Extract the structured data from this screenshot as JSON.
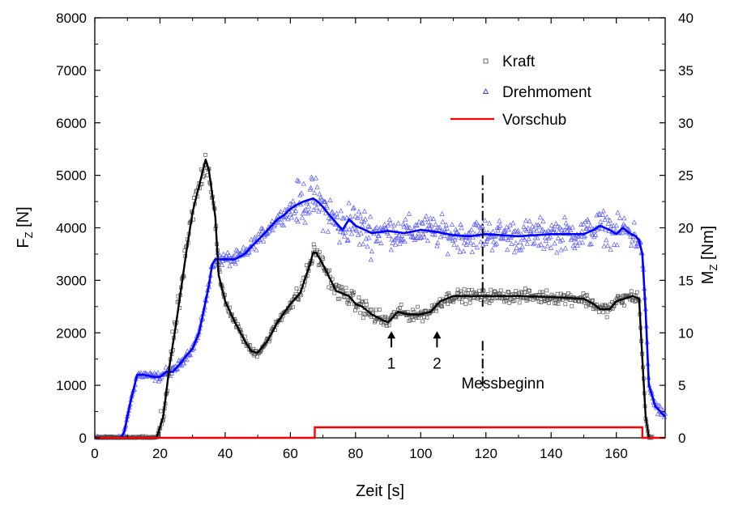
{
  "chart_data": {
    "type": "scatter",
    "title": "",
    "xlabel": "Zeit [s]",
    "ylabel_left": {
      "main": "F",
      "sub": "Z",
      "unit": " [N]"
    },
    "ylabel_right": {
      "main": "M",
      "sub": "Z",
      "unit": " [Nm]"
    },
    "xlim": [
      0,
      175
    ],
    "ylim_left": [
      0,
      8000
    ],
    "ylim_right": [
      0,
      40
    ],
    "x_ticks": [
      0,
      20,
      40,
      60,
      80,
      100,
      120,
      140,
      160
    ],
    "y_left_ticks": [
      0,
      1000,
      2000,
      3000,
      4000,
      5000,
      6000,
      7000,
      8000
    ],
    "y_right_ticks": [
      0,
      5,
      10,
      15,
      20,
      25,
      30,
      35,
      40
    ],
    "grid": false,
    "legend_position": "top-right",
    "legend": [
      {
        "label": "Kraft",
        "marker": "square",
        "color": "#555555"
      },
      {
        "label": "Drehmoment",
        "marker": "triangle",
        "color": "#3b3bff"
      },
      {
        "label": "Vorschub",
        "marker": "line",
        "color": "#ff0000"
      }
    ],
    "series": [
      {
        "name": "Kraft",
        "axis": "left",
        "kind": "smoothed-line",
        "color": "#000000",
        "x": [
          0,
          19,
          21,
          23,
          25,
          28,
          30,
          32,
          34,
          35,
          37,
          38,
          40,
          43,
          46,
          48,
          50,
          53,
          56,
          60,
          63,
          66,
          67,
          68,
          70,
          72,
          74,
          76,
          78,
          80,
          82,
          85,
          88,
          90,
          93,
          96,
          100,
          103,
          106,
          110,
          115,
          120,
          130,
          140,
          150,
          153,
          155,
          158,
          160,
          165,
          167,
          168,
          169,
          170
        ],
        "y": [
          0,
          0,
          400,
          1400,
          2200,
          3500,
          4300,
          4800,
          5300,
          5100,
          4200,
          3100,
          2600,
          2200,
          1850,
          1650,
          1620,
          1850,
          2200,
          2550,
          2750,
          3300,
          3530,
          3520,
          3300,
          3050,
          2800,
          2750,
          2700,
          2550,
          2500,
          2350,
          2250,
          2200,
          2400,
          2350,
          2350,
          2400,
          2600,
          2700,
          2700,
          2700,
          2700,
          2680,
          2650,
          2550,
          2450,
          2450,
          2600,
          2700,
          2650,
          1500,
          400,
          0
        ]
      },
      {
        "name": "Drehmoment",
        "axis": "right",
        "kind": "smoothed-line",
        "color": "#0000ff",
        "x": [
          0,
          8,
          9,
          11,
          13,
          15,
          18,
          20,
          22,
          24,
          26,
          28,
          30,
          32,
          34,
          35,
          36,
          37,
          38,
          40,
          43,
          46,
          48,
          50,
          53,
          56,
          58,
          60,
          62,
          64,
          66,
          67,
          68,
          70,
          72,
          74,
          76,
          78,
          80,
          85,
          90,
          95,
          100,
          105,
          110,
          115,
          120,
          130,
          140,
          150,
          153,
          155,
          158,
          160,
          162,
          164,
          166,
          167,
          168,
          169,
          170,
          172,
          175
        ],
        "y": [
          0,
          0,
          0.5,
          3.5,
          6,
          6,
          5.8,
          5.8,
          6.3,
          6.3,
          7,
          7.8,
          8.5,
          10,
          13,
          14.5,
          16.5,
          17,
          17,
          17,
          17,
          17.5,
          18.2,
          18.8,
          19.8,
          20.8,
          21.2,
          21.8,
          22.2,
          22.5,
          22.7,
          22.8,
          22.6,
          22.0,
          21.2,
          20.5,
          19.8,
          20.8,
          20.2,
          19.5,
          19.7,
          19.5,
          19.8,
          19.6,
          19.3,
          19.2,
          19.4,
          19.2,
          19.4,
          19.4,
          19.8,
          20.2,
          19.8,
          19.4,
          20.0,
          19.5,
          19.2,
          18.8,
          17.5,
          12.0,
          5.0,
          3.0,
          2.0
        ]
      },
      {
        "name": "Vorschub",
        "axis": "left",
        "kind": "step-line",
        "color": "#ff0000",
        "x": [
          0,
          67.5,
          67.5,
          168,
          168,
          175
        ],
        "y": [
          0,
          0,
          200,
          200,
          0,
          0
        ]
      }
    ],
    "annotations": [
      {
        "text": "1",
        "x": 91,
        "y": 2000,
        "arrow": true
      },
      {
        "text": "2",
        "x": 105,
        "y": 2000,
        "arrow": true
      },
      {
        "text": "Messbeginn",
        "x": 119,
        "y_from": 0,
        "y_to": 5000,
        "style": "dash-dot"
      }
    ]
  }
}
